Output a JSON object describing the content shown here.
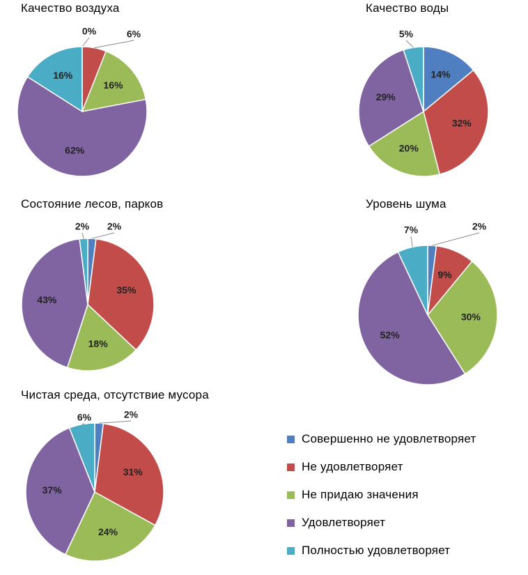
{
  "colors": {
    "completely_dissatisfied": "#4F7FC0",
    "dissatisfied": "#C24C4A",
    "indifferent": "#9BBB59",
    "satisfied": "#8064A2",
    "fully_satisfied": "#4BACC6"
  },
  "chart_data": [
    {
      "type": "pie",
      "title": "Качество воздуха",
      "labels": [
        "Совершенно не удовлетворяет",
        "Не удовлетворяет",
        "Не придаю значения",
        "Удовлетворяет",
        "Полностью удовлетворяет"
      ],
      "values": [
        0,
        6,
        16,
        62,
        16
      ],
      "value_labels": [
        "0%",
        "6%",
        "16%",
        "62%",
        "16%"
      ]
    },
    {
      "type": "pie",
      "title": "Качество воды",
      "labels": [
        "Совершенно не удовлетворяет",
        "Не удовлетворяет",
        "Не придаю значения",
        "Удовлетворяет",
        "Полностью удовлетворяет"
      ],
      "values": [
        14,
        32,
        20,
        29,
        5
      ],
      "value_labels": [
        "14%",
        "32%",
        "20%",
        "29%",
        "5%"
      ]
    },
    {
      "type": "pie",
      "title": "Состояние лесов, парков",
      "labels": [
        "Совершенно не удовлетворяет",
        "Не удовлетворяет",
        "Не придаю значения",
        "Удовлетворяет",
        "Полностью удовлетворяет"
      ],
      "values": [
        2,
        35,
        18,
        43,
        2
      ],
      "value_labels": [
        "2%",
        "35%",
        "18%",
        "43%",
        "2%"
      ]
    },
    {
      "type": "pie",
      "title": "Уровень шума",
      "labels": [
        "Совершенно не удовлетворяет",
        "Не удовлетворяет",
        "Не придаю значения",
        "Удовлетворяет",
        "Полностью удовлетворяет"
      ],
      "values": [
        2,
        9,
        30,
        52,
        7
      ],
      "value_labels": [
        "2%",
        "9%",
        "30%",
        "52%",
        "7%"
      ]
    },
    {
      "type": "pie",
      "title": "Чистая среда, отсутствие мусора",
      "labels": [
        "Совершенно не удовлетворяет",
        "Не удовлетворяет",
        "Не придаю значения",
        "Удовлетворяет",
        "Полностью удовлетворяет"
      ],
      "values": [
        2,
        31,
        24,
        37,
        6
      ],
      "value_labels": [
        "2%",
        "31%",
        "24%",
        "37%",
        "6%"
      ]
    }
  ],
  "legend": {
    "items": [
      {
        "label": "Совершенно не удовлетворяет",
        "color": "#4F7FC0"
      },
      {
        "label": "Не удовлетворяет",
        "color": "#C24C4A"
      },
      {
        "label": "Не придаю значения",
        "color": "#9BBB59"
      },
      {
        "label": "Удовлетворяет",
        "color": "#8064A2"
      },
      {
        "label": "Полностью удовлетворяет",
        "color": "#4BACC6"
      }
    ]
  }
}
